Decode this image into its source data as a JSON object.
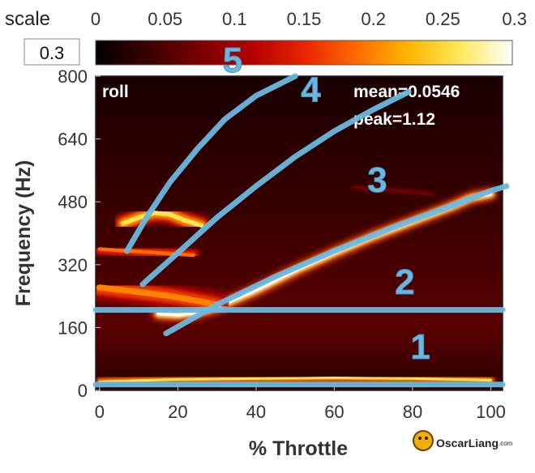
{
  "scale_label": "scale",
  "scale_input_value": "0.3",
  "colorbar": {
    "min": 0,
    "max": 0.3,
    "ticks": [
      "0",
      "0.05",
      "0.1",
      "0.15",
      "0.2",
      "0.25",
      "0.3"
    ],
    "colors": [
      "#000000",
      "#3a0000",
      "#7a0000",
      "#b40000",
      "#e82400",
      "#ff6a00",
      "#ffb400",
      "#ffe85a",
      "#ffffff"
    ]
  },
  "chart_data": {
    "type": "heatmap",
    "panel_label": "roll",
    "xlabel": "% Throttle",
    "ylabel": "Frequency (Hz)",
    "xlim": [
      -1,
      103
    ],
    "ylim": [
      0,
      800
    ],
    "xticks": [
      0,
      20,
      40,
      60,
      80,
      100
    ],
    "yticks": [
      0,
      160,
      320,
      480,
      640,
      800
    ],
    "stats": {
      "mean": "mean=0.0546",
      "peak": "peak=1.12"
    },
    "overlay_color": "#6ab7e0",
    "bands": [
      {
        "id": "band-1",
        "x": [
          0,
          20,
          40,
          60,
          80,
          100
        ],
        "y": [
          22,
          28,
          30,
          32,
          30,
          26
        ],
        "intensity": 0.26,
        "width_hz": 11
      },
      {
        "id": "band-3",
        "x": [
          15,
          20,
          25,
          30,
          40,
          50,
          60,
          70,
          80,
          90,
          95,
          100
        ],
        "y": [
          195,
          192,
          198,
          212,
          255,
          305,
          350,
          392,
          430,
          468,
          490,
          500
        ],
        "intensity": 0.34,
        "width_hz": 13
      },
      {
        "id": "frame-low",
        "x": [
          0,
          6,
          12,
          18,
          25,
          30
        ],
        "y": [
          262,
          255,
          248,
          240,
          228,
          218
        ],
        "intensity": 0.2,
        "width_hz": 28
      },
      {
        "id": "frame-high",
        "x": [
          6,
          10,
          14,
          18,
          22,
          26
        ],
        "y": [
          425,
          440,
          452,
          448,
          432,
          420
        ],
        "intensity": 0.26,
        "width_hz": 20
      },
      {
        "id": "frame-mid",
        "x": [
          0,
          6,
          12,
          18,
          24
        ],
        "y": [
          360,
          356,
          352,
          348,
          344
        ],
        "intensity": 0.19,
        "width_hz": 16
      },
      {
        "id": "side-480",
        "x": [
          65,
          72,
          80,
          85
        ],
        "y": [
          518,
          512,
          505,
          498
        ],
        "intensity": 0.07,
        "width_hz": 12
      }
    ],
    "overlays": [
      {
        "id": "line-1",
        "label": "1",
        "x": [
          -1,
          103
        ],
        "y": [
          15,
          15
        ]
      },
      {
        "id": "line-2",
        "label": "2",
        "x": [
          -1,
          103
        ],
        "y": [
          205,
          205
        ]
      },
      {
        "id": "line-3",
        "label": "3",
        "x": [
          17,
          30,
          45,
          60,
          75,
          90,
          100,
          104
        ],
        "y": [
          145,
          218,
          290,
          355,
          415,
          470,
          508,
          520
        ]
      },
      {
        "id": "line-4",
        "label": "4",
        "x": [
          11,
          20,
          30,
          40,
          50,
          60,
          70,
          79
        ],
        "y": [
          270,
          350,
          440,
          520,
          595,
          660,
          715,
          760
        ]
      },
      {
        "id": "line-5",
        "label": "5",
        "x": [
          7,
          12,
          18,
          25,
          32,
          40,
          50
        ],
        "y": [
          355,
          440,
          530,
          615,
          690,
          750,
          800
        ]
      }
    ],
    "overlay_numbers": [
      {
        "text": "1",
        "x": 82,
        "y": 80
      },
      {
        "text": "2",
        "x": 78,
        "y": 245
      },
      {
        "text": "3",
        "x": 71,
        "y": 505
      },
      {
        "text": "4",
        "x": 54,
        "y": 735
      },
      {
        "text": "5",
        "x": 34,
        "y": 810
      }
    ]
  },
  "watermark": {
    "text": "OscarLiang",
    "suffix": ".com"
  }
}
